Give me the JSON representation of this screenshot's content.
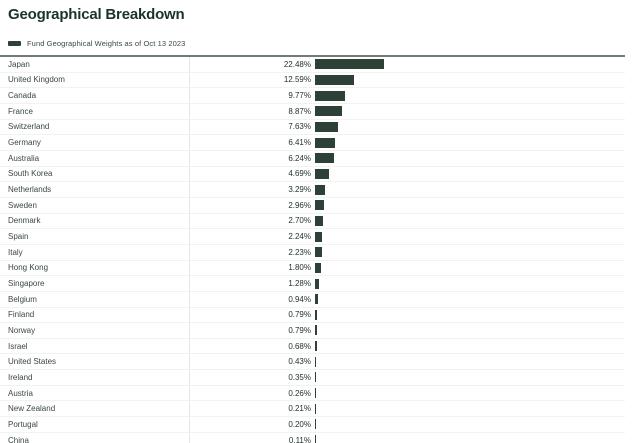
{
  "header": {
    "title": "Geographical Breakdown"
  },
  "legend": {
    "label": "Fund Geographical Weights as of Oct 13 2023",
    "swatch_color": "#2e4136"
  },
  "colors": {
    "bar": "#2e4136",
    "title_text": "#1b332b",
    "rule": "#6e7c75"
  },
  "chart_data": {
    "type": "bar",
    "orientation": "horizontal",
    "title": "Geographical Breakdown",
    "legend_entries": [
      "Fund Geographical Weights as of Oct 13 2023"
    ],
    "legend_position": "top-left",
    "unit": "%",
    "bar_color": "#2e4136",
    "xlim": [
      0,
      25
    ],
    "grid": false,
    "categories": [
      "Japan",
      "United Kingdom",
      "Canada",
      "France",
      "Switzerland",
      "Germany",
      "Australia",
      "South Korea",
      "Netherlands",
      "Sweden",
      "Denmark",
      "Spain",
      "Italy",
      "Hong Kong",
      "Singapore",
      "Belgium",
      "Finland",
      "Norway",
      "Israel",
      "United States",
      "Ireland",
      "Austria",
      "New Zealand",
      "Portugal",
      "China"
    ],
    "values": [
      22.48,
      12.59,
      9.77,
      8.87,
      7.63,
      6.41,
      6.24,
      4.69,
      3.29,
      2.96,
      2.7,
      2.24,
      2.23,
      1.8,
      1.28,
      0.94,
      0.79,
      0.79,
      0.68,
      0.43,
      0.35,
      0.26,
      0.21,
      0.2,
      0.11
    ],
    "value_labels": [
      "22.48%",
      "12.59%",
      "9.77%",
      "8.87%",
      "7.63%",
      "6.41%",
      "6.24%",
      "4.69%",
      "3.29%",
      "2.96%",
      "2.70%",
      "2.24%",
      "2.23%",
      "1.80%",
      "1.28%",
      "0.94%",
      "0.79%",
      "0.79%",
      "0.68%",
      "0.43%",
      "0.35%",
      "0.26%",
      "0.21%",
      "0.20%",
      "0.11%"
    ]
  }
}
